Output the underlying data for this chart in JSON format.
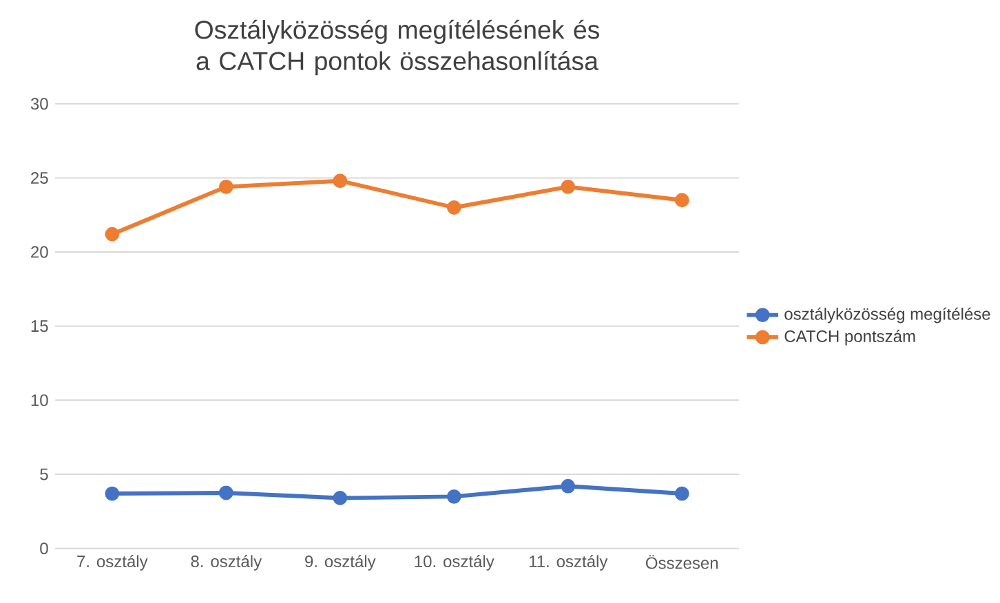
{
  "chart_data": {
    "type": "line",
    "title": "Osztályközösség megítélésének és a CATCH pontok összehasonlítása",
    "categories": [
      "7. osztály",
      "8. osztály",
      "9. osztály",
      "10. osztály",
      "11. osztály",
      "Összesen"
    ],
    "series": [
      {
        "name": "osztályközösség megítélése",
        "color": "#4472c4",
        "values": [
          3.7,
          3.75,
          3.4,
          3.5,
          4.2,
          3.7
        ]
      },
      {
        "name": "CATCH pontszám",
        "color": "#ed7d31",
        "values": [
          21.2,
          24.4,
          24.8,
          23.0,
          24.4,
          23.5
        ]
      }
    ],
    "ylim": [
      0,
      30
    ],
    "yticks": [
      0,
      5,
      10,
      15,
      20,
      25,
      30
    ],
    "grid": "y",
    "legend": "right",
    "marker": "circle",
    "line_style": "solid"
  }
}
